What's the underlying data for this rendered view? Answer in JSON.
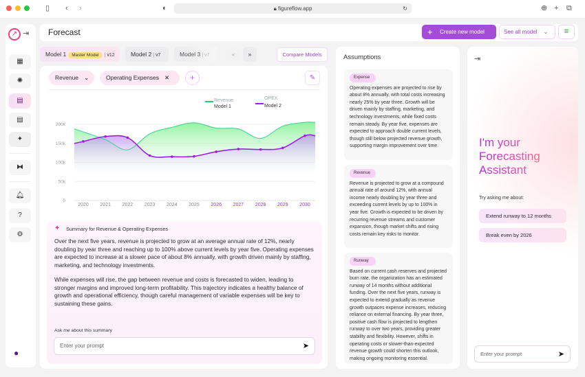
{
  "browser": {
    "url": "figureflow.app"
  },
  "header": {
    "title": "Forecast",
    "create_label": "Create new model",
    "see_all_label": "See all model"
  },
  "models": [
    {
      "name": "Model 1",
      "badge": "Master Model",
      "version": "v12"
    },
    {
      "name": "Model 2",
      "version": "v7"
    },
    {
      "name": "Model 3",
      "version": "v7"
    }
  ],
  "compare_label": "Compare Models",
  "filters": {
    "metric": "Revenue",
    "chip": "Operating Expenses"
  },
  "colors": {
    "accent": "#a44bd8",
    "revenue": "#3fcf8e",
    "opex": "#9b1fe0"
  },
  "chart_data": {
    "type": "area",
    "legend": [
      {
        "series": "Revenue",
        "model": "Model 1"
      },
      {
        "series": "OPEX",
        "model": "Model 2"
      }
    ],
    "legend_position": "top",
    "x": [
      2020,
      2021,
      2022,
      2023,
      2024,
      2025,
      2026,
      2027,
      2028,
      2029,
      2030
    ],
    "forecast_from": 2026,
    "y_ticks": [
      "0",
      "50k",
      "100k",
      "150k",
      "200k"
    ],
    "ylim": [
      0,
      200000
    ],
    "grid": true,
    "series": [
      {
        "name": "Revenue",
        "values": [
          180000,
          160000,
          133000,
          175000,
          192000,
          204000,
          190000,
          188000,
          163000,
          195000,
          205000
        ]
      },
      {
        "name": "OPEX",
        "values": [
          155000,
          168000,
          165000,
          118000,
          115000,
          116000,
          128000,
          135000,
          134000,
          138000,
          170000
        ]
      }
    ]
  },
  "summary": {
    "title": "Summary for Revenue & Operating Expenses",
    "p1": "Over the next five years, revenue is projected to grow at an average annual rate of 12%, nearly doubling by year three and reaching up to 100% above current levels by year five. Operating expenses are expected to increase at a slower pace of about 8% annually, with growth driven mainly by staffing, marketing, and technology investments.",
    "p2": "While expenses will rise, the gap between revenue and costs is forecasted to widen, leading to stronger margins and improved long-term profitability. This trajectory indicates a healthy balance of growth and operational efficiency, though careful management of variable expenses will be key to sustaining these gains.",
    "ask_label": "Ask me about this summary",
    "placeholder": "Enter your prompt"
  },
  "assumptions": {
    "title": "Assumptions",
    "items": [
      {
        "tag": "Expense",
        "text": "Operating expenses are projected to rise by about 8% annually, with total costs increasing nearly 25% by year three. Growth will be driven mainly by staffing, marketing, and technology investments, while fixed costs remain steady. By year five, expenses are expected to approach double current levels, though still below projected revenue growth, supporting margin improvement over time."
      },
      {
        "tag": "Revenue",
        "text": "Revenue is projected to grow at a compound annual rate of around 12%, with annual income nearly doubling by year three and exceeding current levels by up to 100% in year five. Growth is expected to be driven by recurring revenue streams and customer expansion, though market shifts and rising costs remain key risks to monitor."
      },
      {
        "tag": "Runway",
        "text": "Based on current cash reserves and projected burn rate, the organization has an estimated runway of 14 months without additional funding. Over the next five years, runway is expected to extend gradually as revenue growth outpaces expense increases, reducing reliance on external financing. By year three, positive cash flow is projected to lengthen runway to over two years, providing greater stability and flexibility. However, shifts in operating costs or slower-than-expected revenue growth could shorten this outlook, making ongoing monitoring essential."
      }
    ]
  },
  "assistant": {
    "heading_1": "I'm your",
    "heading_2": "Forecasting",
    "heading_3": "Assistant",
    "try_label": "Try asking me about:",
    "suggestions": [
      "Extend runway to 12 months",
      "Break even by 2026"
    ],
    "placeholder": "Enter your prompt"
  }
}
